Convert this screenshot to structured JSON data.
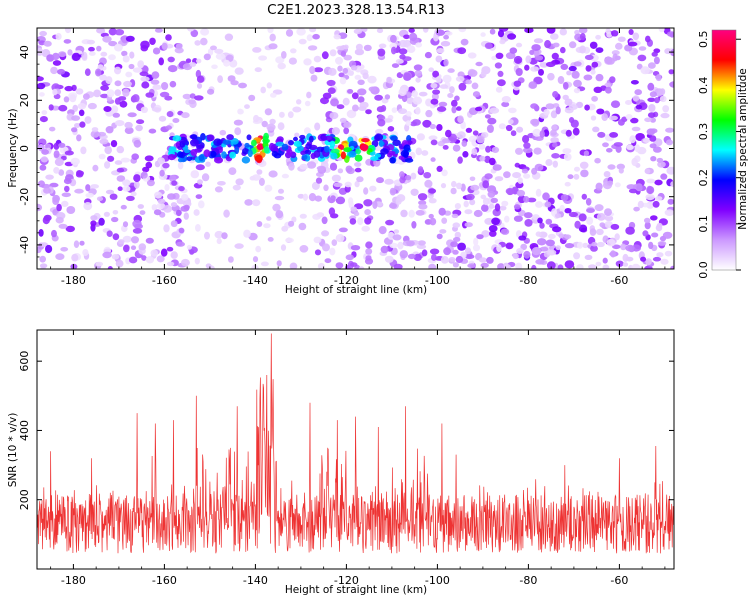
{
  "title": "C2E1.2023.328.13.54.R13",
  "chart_data": [
    {
      "type": "heatmap",
      "xlabel": "Height of straight line (km)",
      "ylabel": "Frequency (Hz)",
      "xlim": [
        -188,
        -48
      ],
      "ylim": [
        -50,
        50
      ],
      "xticks": [
        -180,
        -160,
        -140,
        -120,
        -100,
        -80,
        -60
      ],
      "yticks": [
        -40,
        -20,
        0,
        20,
        40
      ],
      "colorbar": {
        "label": "Normalized spectral amplitude",
        "range": [
          0.0,
          0.52
        ],
        "ticks": [
          "0.0",
          "0.1",
          "0.2",
          "0.3",
          "0.4",
          "0.5"
        ],
        "tick_values": [
          0.0,
          0.1,
          0.2,
          0.3,
          0.4,
          0.5
        ],
        "colormap": [
          "#ffffff",
          "#cc99ff",
          "#8000ff",
          "#0000ff",
          "#00ffff",
          "#00ff00",
          "#ffff00",
          "#ff0000",
          "#ff0080"
        ]
      },
      "features": [
        {
          "description": "strong signal band",
          "x_range": [
            -159,
            -106
          ],
          "freq_center": 0,
          "freq_halfwidth": 5,
          "peak_amplitude": 0.5,
          "peak_positions_km": [
            -139,
            -121,
            -116
          ]
        },
        {
          "description": "low-density column",
          "x_range": [
            -152,
            -127
          ],
          "amplitude": 0.05
        },
        {
          "description": "background noise",
          "amplitude_range": [
            0.02,
            0.15
          ]
        }
      ]
    },
    {
      "type": "line",
      "xlabel": "Height of straight line (km)",
      "ylabel": "SNR (10 * v/v)",
      "xlim": [
        -188,
        -48
      ],
      "ylim": [
        0,
        690
      ],
      "xticks": [
        -180,
        -160,
        -140,
        -120,
        -100,
        -80,
        -60
      ],
      "yticks": [
        200,
        400,
        600
      ],
      "series": [
        {
          "name": "SNR",
          "color": "#ee3333",
          "baseline": 130,
          "noise_band": [
            45,
            240
          ],
          "peaks": [
            {
              "x": -138,
              "y": 690
            },
            {
              "x": -136.5,
              "y": 680
            },
            {
              "x": -139.5,
              "y": 620
            },
            {
              "x": -137.5,
              "y": 560
            },
            {
              "x": -153,
              "y": 500
            },
            {
              "x": -128,
              "y": 480
            },
            {
              "x": -107,
              "y": 470
            },
            {
              "x": -144,
              "y": 470
            },
            {
              "x": -166,
              "y": 450
            },
            {
              "x": -162,
              "y": 420
            },
            {
              "x": -158,
              "y": 430
            },
            {
              "x": -118,
              "y": 440
            },
            {
              "x": -113,
              "y": 410
            },
            {
              "x": -122,
              "y": 430
            },
            {
              "x": -99,
              "y": 420
            },
            {
              "x": -52,
              "y": 355
            },
            {
              "x": -60,
              "y": 320
            },
            {
              "x": -72,
              "y": 300
            },
            {
              "x": -185,
              "y": 340
            },
            {
              "x": -176,
              "y": 320
            }
          ]
        }
      ]
    }
  ]
}
